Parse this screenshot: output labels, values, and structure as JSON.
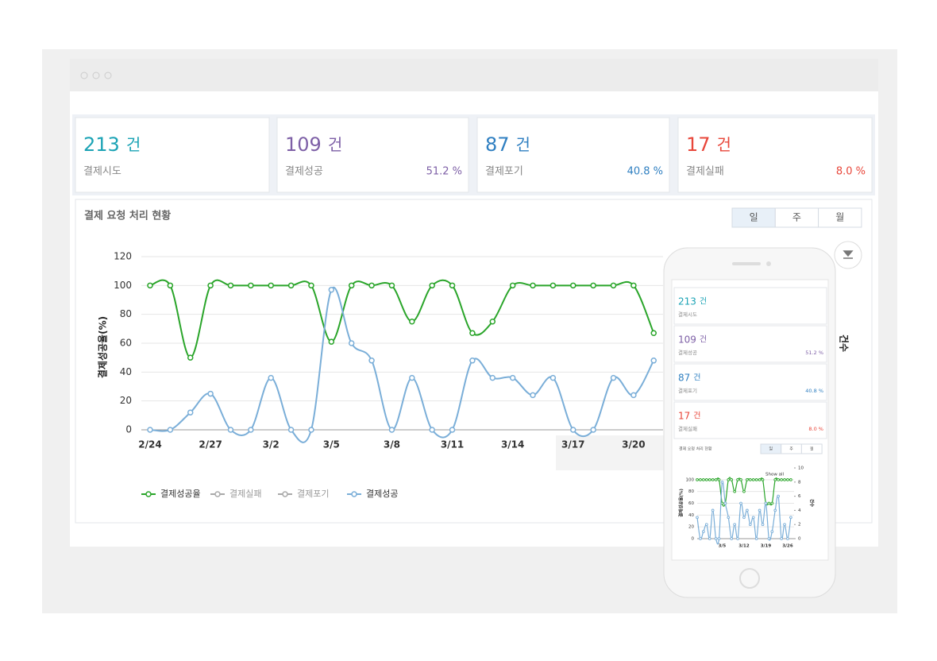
{
  "cards": [
    {
      "value": "213",
      "unit": "건",
      "label": "결제시도",
      "color": "#1ba3b5"
    },
    {
      "value": "109",
      "unit": "건",
      "label": "결제성공",
      "rate": "51.2 %",
      "color": "#7d5fa6"
    },
    {
      "value": "87",
      "unit": "건",
      "label": "결제포기",
      "rate": "40.8 %",
      "color": "#2f7fc1"
    },
    {
      "value": "17",
      "unit": "건",
      "label": "결제실패",
      "rate": "8.0 %",
      "color": "#e8463a"
    }
  ],
  "panel": {
    "title": "결제 요청 처리 현황",
    "periods": [
      "일",
      "주",
      "월"
    ]
  },
  "mobile": {
    "cards": [
      {
        "value": "213",
        "unit": "건",
        "label": "결제시도",
        "color": "#1ba3b5"
      },
      {
        "value": "109",
        "unit": "건",
        "label": "결제성공",
        "rate": "51.2 %",
        "color": "#7d5fa6"
      },
      {
        "value": "87",
        "unit": "건",
        "label": "결제포기",
        "rate": "40.8 %",
        "color": "#2f7fc1"
      },
      {
        "value": "17",
        "unit": "건",
        "label": "결제실패",
        "rate": "8.0 %",
        "color": "#e8463a"
      }
    ],
    "panel": {
      "title": "결제 요청 처리 현황",
      "periods": [
        "일",
        "주",
        "월"
      ]
    }
  },
  "chart_data": [
    {
      "type": "line",
      "y_label": "결제성공율(%)",
      "y2_label": "건수",
      "categories": [
        "2/24",
        null,
        null,
        "2/27",
        null,
        null,
        "3/2",
        null,
        null,
        "3/5",
        null,
        null,
        "3/8",
        null,
        null,
        "3/11",
        null,
        null,
        "3/14",
        null,
        null,
        "3/17",
        null,
        null,
        "3/20",
        null
      ],
      "ylim": [
        0,
        120
      ],
      "yticks": [
        0,
        20,
        40,
        60,
        80,
        100,
        120
      ],
      "grid": true,
      "series": [
        {
          "name": "결제성공율",
          "color": "#2aa52a",
          "visible": true,
          "values": [
            100,
            100,
            50,
            100,
            100,
            100,
            100,
            100,
            100,
            61,
            100,
            100,
            100,
            75,
            100,
            100,
            67,
            75,
            100,
            100,
            100,
            100,
            100,
            100,
            100,
            67
          ]
        },
        {
          "name": "결제실패",
          "color": "#a9a9a9",
          "visible": false
        },
        {
          "name": "결제포기",
          "color": "#a9a9a9",
          "visible": false
        },
        {
          "name": "결제성공",
          "color": "#7aaed8",
          "visible": true,
          "values": [
            0,
            0,
            12,
            25,
            0,
            0,
            36,
            0,
            0,
            97,
            60,
            48,
            0,
            36,
            0,
            0,
            48,
            36,
            36,
            24,
            36,
            0,
            0,
            36,
            24,
            48
          ]
        }
      ]
    },
    {
      "type": "line",
      "y_label": "결제성공율(%)",
      "y2_label": "건수",
      "annotation": "Show all",
      "categories": [
        null,
        null,
        null,
        null,
        null,
        null,
        null,
        null,
        "3/5",
        null,
        null,
        null,
        null,
        null,
        null,
        "3/12",
        null,
        null,
        null,
        null,
        null,
        null,
        "3/19",
        null,
        null,
        null,
        null,
        null,
        null,
        "3/26",
        null
      ],
      "ylim": [
        0,
        120
      ],
      "yticks": [
        0,
        20,
        40,
        60,
        80,
        100
      ],
      "y2lim": [
        0,
        10
      ],
      "y2ticks": [
        0,
        2,
        4,
        6,
        8,
        10
      ],
      "grid": true,
      "series": [
        {
          "name": "결제성공율",
          "color": "#2aa52a",
          "visible": true,
          "values": [
            100,
            100,
            100,
            100,
            100,
            100,
            100,
            100,
            60,
            60,
            100,
            100,
            80,
            100,
            100,
            80,
            100,
            100,
            100,
            100,
            100,
            100,
            60,
            60,
            60,
            100,
            100,
            100,
            100,
            100,
            100
          ]
        },
        {
          "name": "결제성공",
          "color": "#7aaed8",
          "visible": true,
          "axis": "y2",
          "values": [
            3,
            0,
            1,
            2,
            0,
            4,
            0,
            0,
            8,
            5,
            3,
            0,
            2,
            0,
            5,
            3,
            4,
            2,
            3,
            0,
            4,
            2,
            5,
            0,
            1,
            4,
            6,
            0,
            2,
            0,
            3
          ]
        }
      ]
    }
  ]
}
